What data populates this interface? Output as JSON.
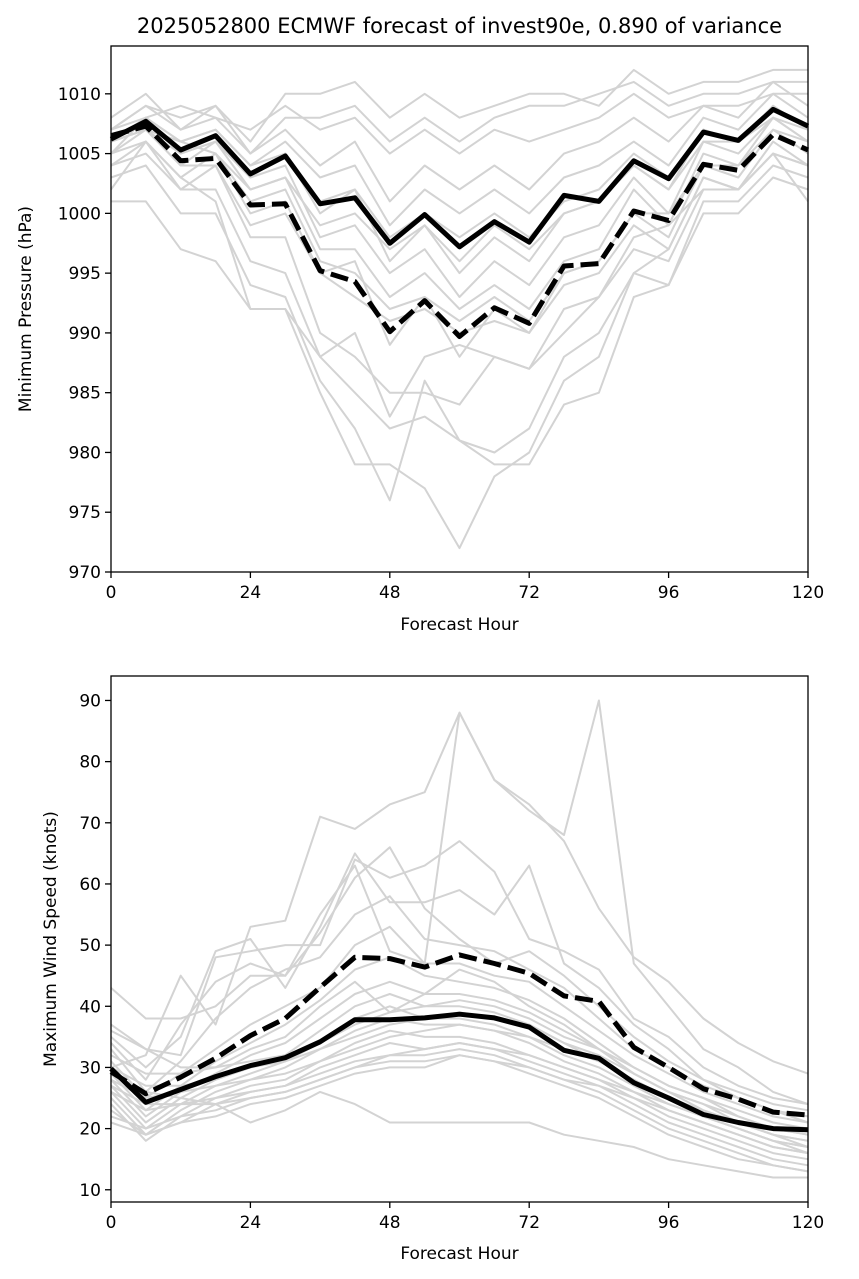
{
  "chart_data": [
    {
      "type": "line",
      "title": "2025052800 ECMWF forecast of invest90e, 0.890 of variance",
      "xlabel": "Forecast Hour",
      "ylabel": "Minimum Pressure (hPa)",
      "xlim": [
        0,
        120
      ],
      "ylim": [
        970,
        1014
      ],
      "xticks": [
        0,
        24,
        48,
        72,
        96,
        120
      ],
      "yticks": [
        970,
        975,
        980,
        985,
        990,
        995,
        1000,
        1005,
        1010
      ],
      "x": [
        0,
        6,
        12,
        18,
        24,
        30,
        36,
        42,
        48,
        54,
        60,
        66,
        72,
        78,
        84,
        90,
        96,
        102,
        108,
        114,
        120
      ],
      "colors": {
        "ensemble": "#d3d3d3",
        "highlight": "#000000"
      },
      "ensemble_members": [
        [
          1008,
          1010,
          1007,
          1009,
          1006,
          1010,
          1010,
          1011,
          1008,
          1010,
          1008,
          1009,
          1010,
          1010,
          1009,
          1012,
          1010,
          1011,
          1011,
          1012,
          1012
        ],
        [
          1007,
          1009,
          1008,
          1009,
          1005,
          1008,
          1008,
          1009,
          1006,
          1008,
          1006,
          1008,
          1009,
          1009,
          1010,
          1011,
          1009,
          1010,
          1010,
          1011,
          1011
        ],
        [
          1006,
          1008,
          1009,
          1008,
          1007,
          1009,
          1007,
          1008,
          1005,
          1007,
          1005,
          1007,
          1006,
          1007,
          1008,
          1010,
          1008,
          1009,
          1009,
          1010,
          1010
        ],
        [
          1006,
          1007,
          1006,
          1007,
          1004,
          1006,
          1003,
          1004,
          999,
          1002,
          1000,
          1002,
          1000,
          1003,
          1004,
          1006,
          1004,
          1008,
          1007,
          1010,
          1008
        ],
        [
          1005,
          1008,
          1006,
          1007,
          1004,
          1005,
          1000,
          1002,
          996,
          999,
          995,
          998,
          996,
          1000,
          1001,
          1004,
          1002,
          1007,
          1006,
          1009,
          1007
        ],
        [
          1007,
          1008,
          1005,
          1006,
          1003,
          1004,
          998,
          999,
          995,
          997,
          993,
          996,
          994,
          998,
          999,
          1003,
          1000,
          1006,
          1005,
          1008,
          1006
        ],
        [
          1006,
          1007,
          1004,
          1006,
          1002,
          1003,
          997,
          997,
          993,
          995,
          992,
          994,
          992,
          996,
          997,
          1002,
          999,
          1005,
          1004,
          1008,
          1006
        ],
        [
          1005,
          1006,
          1003,
          1005,
          1001,
          1002,
          996,
          995,
          992,
          993,
          991,
          993,
          991,
          995,
          996,
          1000,
          998,
          1004,
          1003,
          1007,
          1005
        ],
        [
          1004,
          1006,
          1002,
          1004,
          999,
          1000,
          995,
          993,
          991,
          992,
          990,
          991,
          990,
          994,
          995,
          999,
          997,
          1003,
          1002,
          1006,
          1004
        ],
        [
          1006,
          1007,
          1004,
          1004,
          998,
          998,
          990,
          988,
          985,
          985,
          984,
          988,
          987,
          992,
          993,
          997,
          996,
          1002,
          1002,
          1005,
          1004
        ],
        [
          1004,
          1005,
          1002,
          1002,
          996,
          995,
          988,
          985,
          982,
          983,
          981,
          980,
          982,
          988,
          990,
          995,
          994,
          1001,
          1001,
          1004,
          1003
        ],
        [
          1003,
          1004,
          1000,
          1000,
          994,
          993,
          986,
          982,
          976,
          986,
          981,
          979,
          979,
          984,
          985,
          993,
          994,
          1000,
          1000,
          1003,
          1002
        ],
        [
          1002,
          1006,
          1003,
          1001,
          992,
          992,
          985,
          979,
          979,
          977,
          972,
          978,
          980,
          986,
          988,
          995,
          997,
          1003,
          1002,
          1005,
          1004
        ],
        [
          1001,
          1001,
          997,
          996,
          992,
          992,
          988,
          990,
          983,
          988,
          989,
          988,
          987,
          990,
          993,
          998,
          999,
          1002,
          1002,
          1005,
          1001
        ],
        [
          1006,
          1008,
          1006,
          1005,
          1000,
          1001,
          995,
          996,
          989,
          993,
          988,
          992,
          990,
          995,
          996,
          1000,
          1000,
          1004,
          1004,
          1007,
          1006
        ],
        [
          1007,
          1009,
          1007,
          1008,
          1005,
          1007,
          1004,
          1006,
          1001,
          1004,
          1002,
          1004,
          1002,
          1005,
          1006,
          1008,
          1006,
          1009,
          1008,
          1011,
          1009
        ],
        [
          1006,
          1007,
          1005,
          1006,
          1003,
          1005,
          1001,
          1002,
          998,
          1000,
          998,
          1000,
          998,
          1001,
          1002,
          1005,
          1003,
          1007,
          1006,
          1009,
          1007
        ],
        [
          1005,
          1007,
          1006,
          1005,
          1002,
          1003,
          999,
          1000,
          997,
          999,
          996,
          999,
          997,
          1000,
          1001,
          1004,
          1002,
          1006,
          1006,
          1008,
          1007
        ]
      ],
      "series": [
        {
          "values": [
            1006.2,
            1007.7,
            1005.3,
            1006.5,
            1003.3,
            1004.8,
            1000.8,
            1001.3,
            997.5,
            999.9,
            997.2,
            999.3,
            997.6,
            1001.5,
            1001.0,
            1004.4,
            1002.9,
            1006.8,
            1006.1,
            1008.7,
            1007.3
          ],
          "style": "solid"
        },
        {
          "values": [
            1006.5,
            1007.3,
            1004.4,
            1004.6,
            1000.7,
            1000.8,
            995.2,
            994.3,
            990.1,
            992.7,
            989.7,
            992.1,
            990.8,
            995.6,
            995.8,
            1000.2,
            999.4,
            1004.1,
            1003.6,
            1006.6,
            1005.3
          ],
          "style": "dashed"
        }
      ]
    },
    {
      "type": "line",
      "xlabel": "Forecast Hour",
      "ylabel": "Maximum Wind Speed (knots)",
      "xlim": [
        0,
        120
      ],
      "ylim": [
        8,
        94
      ],
      "xticks": [
        0,
        24,
        48,
        72,
        96,
        120
      ],
      "yticks": [
        10,
        20,
        30,
        40,
        50,
        60,
        70,
        80,
        90
      ],
      "x": [
        0,
        6,
        12,
        18,
        24,
        30,
        36,
        42,
        48,
        54,
        60,
        66,
        72,
        78,
        84,
        90,
        96,
        102,
        108,
        114,
        120
      ],
      "colors": {
        "ensemble": "#d3d3d3",
        "highlight": "#000000"
      },
      "ensemble_members": [
        [
          43,
          38,
          38,
          40,
          45,
          45,
          55,
          63,
          49,
          47,
          88,
          77,
          73,
          67,
          56,
          48,
          44,
          38,
          34,
          31,
          29
        ],
        [
          30,
          32,
          45,
          37,
          53,
          54,
          71,
          69,
          73,
          75,
          88,
          77,
          72,
          68,
          90,
          47,
          40,
          33,
          30,
          26,
          24
        ],
        [
          35,
          30,
          35,
          49,
          51,
          43,
          53,
          65,
          57,
          57,
          59,
          55,
          63,
          47,
          43,
          37,
          33,
          28,
          25,
          23,
          22
        ],
        [
          37,
          33,
          32,
          48,
          49,
          50,
          50,
          64,
          61,
          63,
          67,
          62,
          51,
          49,
          46,
          38,
          35,
          30,
          27,
          25,
          24
        ],
        [
          34,
          28,
          37,
          44,
          47,
          45,
          52,
          61,
          66,
          56,
          51,
          47,
          49,
          45,
          40,
          35,
          31,
          28,
          26,
          24,
          23
        ],
        [
          33,
          26,
          31,
          38,
          43,
          46,
          48,
          55,
          58,
          51,
          50,
          49,
          46,
          43,
          38,
          33,
          30,
          27,
          25,
          23,
          21
        ],
        [
          31,
          25,
          29,
          33,
          37,
          40,
          43,
          50,
          53,
          47,
          47,
          45,
          44,
          40,
          36,
          32,
          29,
          26,
          24,
          22,
          21
        ],
        [
          29,
          23,
          27,
          31,
          34,
          37,
          41,
          46,
          48,
          45,
          44,
          43,
          41,
          38,
          34,
          30,
          27,
          25,
          23,
          21,
          20
        ],
        [
          28,
          22,
          26,
          29,
          32,
          34,
          38,
          42,
          44,
          42,
          42,
          41,
          39,
          36,
          33,
          29,
          26,
          24,
          22,
          20,
          19
        ],
        [
          27,
          21,
          25,
          28,
          30,
          32,
          36,
          40,
          42,
          40,
          40,
          39,
          37,
          34,
          31,
          28,
          25,
          23,
          21,
          19,
          18
        ],
        [
          26,
          20,
          24,
          27,
          29,
          31,
          34,
          38,
          40,
          38,
          38,
          37,
          35,
          32,
          30,
          27,
          24,
          22,
          20,
          18,
          17
        ],
        [
          25,
          19,
          23,
          26,
          28,
          30,
          33,
          36,
          38,
          37,
          37,
          36,
          34,
          31,
          29,
          26,
          23,
          21,
          19,
          17,
          16
        ],
        [
          24,
          18,
          22,
          25,
          27,
          28,
          31,
          34,
          36,
          35,
          35,
          34,
          32,
          30,
          28,
          25,
          22,
          20,
          18,
          16,
          15
        ],
        [
          23,
          19,
          21,
          24,
          26,
          27,
          30,
          32,
          34,
          33,
          34,
          33,
          31,
          29,
          27,
          24,
          21,
          19,
          17,
          15,
          14
        ],
        [
          22,
          20,
          22,
          23,
          25,
          26,
          28,
          30,
          32,
          32,
          33,
          32,
          30,
          28,
          26,
          23,
          20,
          18,
          16,
          14,
          13
        ],
        [
          21,
          19,
          21,
          22,
          24,
          25,
          27,
          29,
          30,
          30,
          32,
          31,
          29,
          27,
          25,
          22,
          19,
          17,
          15,
          14,
          13
        ],
        [
          27,
          24,
          24,
          24,
          21,
          23,
          26,
          24,
          21,
          21,
          21,
          21,
          21,
          19,
          18,
          17,
          15,
          14,
          13,
          12,
          12
        ],
        [
          36,
          33,
          30,
          30,
          33,
          35,
          40,
          44,
          39,
          42,
          46,
          44,
          40,
          37,
          33,
          29,
          26,
          23,
          21,
          19,
          18
        ],
        [
          28,
          25,
          26,
          27,
          28,
          29,
          31,
          33,
          35,
          36,
          37,
          36,
          35,
          33,
          31,
          28,
          25,
          22,
          20,
          18,
          16
        ],
        [
          30,
          27,
          27,
          28,
          30,
          31,
          33,
          35,
          37,
          38,
          39,
          38,
          37,
          34,
          32,
          29,
          26,
          24,
          21,
          19,
          17
        ],
        [
          32,
          29,
          29,
          30,
          31,
          32,
          34,
          37,
          39,
          40,
          41,
          40,
          38,
          35,
          33,
          30,
          27,
          25,
          22,
          20,
          19
        ],
        [
          26,
          23,
          24,
          25,
          26,
          27,
          29,
          31,
          32,
          33,
          34,
          33,
          32,
          30,
          28,
          26,
          24,
          22,
          20,
          18,
          17
        ],
        [
          29,
          26,
          25,
          24,
          25,
          26,
          28,
          30,
          31,
          31,
          32,
          31,
          30,
          28,
          27,
          25,
          23,
          21,
          19,
          17,
          16
        ]
      ],
      "series": [
        {
          "values": [
            29.8,
            24.3,
            26.4,
            28.5,
            30.3,
            31.6,
            34.2,
            37.8,
            37.8,
            38.1,
            38.7,
            38.1,
            36.6,
            32.8,
            31.5,
            27.5,
            25.0,
            22.3,
            21.0,
            20.0,
            19.8
          ],
          "style": "solid"
        },
        {
          "values": [
            29.3,
            25.7,
            28.4,
            31.5,
            35.2,
            38.0,
            43.1,
            48.0,
            47.8,
            46.4,
            48.4,
            47.0,
            45.4,
            41.7,
            40.8,
            33.3,
            30.0,
            26.5,
            24.8,
            22.7,
            22.2
          ],
          "style": "dashed"
        }
      ]
    }
  ]
}
